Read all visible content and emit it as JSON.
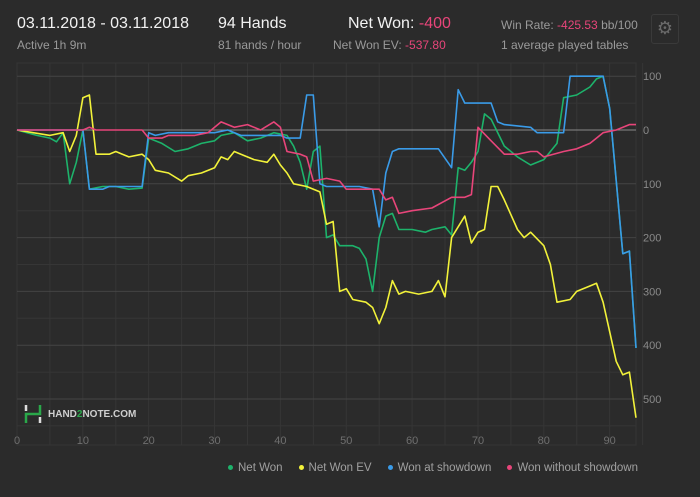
{
  "header": {
    "date_range": "03.11.2018 - 03.11.2018",
    "active": "Active 1h 9m",
    "hands": "94 Hands",
    "hands_per_hour": "81 hands / hour",
    "net_won_label": "Net Won:",
    "net_won_value": "-400",
    "net_won_ev_label": "Net Won  EV:",
    "net_won_ev_value": "-537.80",
    "win_rate_label": "Win Rate:",
    "win_rate_value": "-425.53",
    "win_rate_unit": "bb/100",
    "tables": "1 average played tables",
    "settings_icon": "gear-icon"
  },
  "logo": {
    "text_a": "HAND",
    "text_b": "2",
    "text_c": "NOTE.COM"
  },
  "chart_data": {
    "type": "line",
    "xlim": [
      0,
      94
    ],
    "ylim": [
      -540,
      100
    ],
    "x_ticks": [
      0,
      10,
      20,
      30,
      40,
      50,
      60,
      70,
      80,
      90
    ],
    "y_ticks": [
      100,
      0,
      -100,
      -200,
      -300,
      -400,
      -500
    ],
    "y_tick_labels": [
      "100",
      "0",
      "100",
      "200",
      "300",
      "400",
      "500"
    ],
    "grid": true,
    "legend_position": "bottom-right",
    "series": [
      {
        "name": "Net Won",
        "color": "#1db36b",
        "points": [
          [
            0,
            0
          ],
          [
            3,
            -10
          ],
          [
            5,
            -15
          ],
          [
            6,
            -22
          ],
          [
            7,
            -5
          ],
          [
            8,
            -100
          ],
          [
            9,
            -60
          ],
          [
            10,
            0
          ],
          [
            11,
            -110
          ],
          [
            13,
            -105
          ],
          [
            15,
            -105
          ],
          [
            17,
            -110
          ],
          [
            19,
            -108
          ],
          [
            20,
            -15
          ],
          [
            22,
            -25
          ],
          [
            24,
            -40
          ],
          [
            26,
            -35
          ],
          [
            28,
            -25
          ],
          [
            30,
            -20
          ],
          [
            31,
            -10
          ],
          [
            33,
            -5
          ],
          [
            35,
            -20
          ],
          [
            37,
            -15
          ],
          [
            39,
            -5
          ],
          [
            41,
            -10
          ],
          [
            42,
            -30
          ],
          [
            43,
            -60
          ],
          [
            44,
            -110
          ],
          [
            45,
            -40
          ],
          [
            46,
            -30
          ],
          [
            47,
            -200
          ],
          [
            48,
            -195
          ],
          [
            49,
            -215
          ],
          [
            51,
            -215
          ],
          [
            52,
            -220
          ],
          [
            53,
            -240
          ],
          [
            54,
            -300
          ],
          [
            55,
            -200
          ],
          [
            56,
            -160
          ],
          [
            57,
            -155
          ],
          [
            58,
            -185
          ],
          [
            60,
            -185
          ],
          [
            62,
            -190
          ],
          [
            63,
            -185
          ],
          [
            65,
            -180
          ],
          [
            66,
            -195
          ],
          [
            67,
            -70
          ],
          [
            68,
            -75
          ],
          [
            69,
            -60
          ],
          [
            70,
            -40
          ],
          [
            71,
            30
          ],
          [
            72,
            20
          ],
          [
            74,
            -30
          ],
          [
            76,
            -50
          ],
          [
            78,
            -65
          ],
          [
            80,
            -55
          ],
          [
            82,
            -25
          ],
          [
            83,
            60
          ],
          [
            85,
            65
          ],
          [
            87,
            80
          ],
          [
            88,
            95
          ],
          [
            89,
            100
          ],
          [
            90,
            40
          ],
          [
            92,
            -230
          ],
          [
            93,
            -225
          ],
          [
            94,
            -405
          ]
        ]
      },
      {
        "name": "Net Won  EV",
        "color": "#f2f23a",
        "points": [
          [
            0,
            0
          ],
          [
            5,
            -10
          ],
          [
            7,
            -5
          ],
          [
            8,
            -40
          ],
          [
            9,
            -10
          ],
          [
            10,
            60
          ],
          [
            11,
            65
          ],
          [
            12,
            -45
          ],
          [
            14,
            -45
          ],
          [
            15,
            -40
          ],
          [
            16,
            -45
          ],
          [
            17,
            -50
          ],
          [
            19,
            -45
          ],
          [
            20,
            -55
          ],
          [
            21,
            -75
          ],
          [
            23,
            -80
          ],
          [
            25,
            -95
          ],
          [
            26,
            -85
          ],
          [
            28,
            -80
          ],
          [
            30,
            -70
          ],
          [
            31,
            -50
          ],
          [
            32,
            -55
          ],
          [
            33,
            -40
          ],
          [
            34,
            -45
          ],
          [
            36,
            -55
          ],
          [
            38,
            -60
          ],
          [
            39,
            -45
          ],
          [
            40,
            -65
          ],
          [
            41,
            -80
          ],
          [
            42,
            -100
          ],
          [
            44,
            -105
          ],
          [
            46,
            -115
          ],
          [
            47,
            -175
          ],
          [
            48,
            -170
          ],
          [
            49,
            -300
          ],
          [
            50,
            -295
          ],
          [
            51,
            -315
          ],
          [
            53,
            -320
          ],
          [
            54,
            -330
          ],
          [
            55,
            -360
          ],
          [
            56,
            -330
          ],
          [
            57,
            -280
          ],
          [
            58,
            -305
          ],
          [
            59,
            -300
          ],
          [
            61,
            -305
          ],
          [
            63,
            -300
          ],
          [
            64,
            -280
          ],
          [
            65,
            -310
          ],
          [
            66,
            -200
          ],
          [
            68,
            -160
          ],
          [
            69,
            -210
          ],
          [
            70,
            -190
          ],
          [
            71,
            -185
          ],
          [
            72,
            -105
          ],
          [
            73,
            -105
          ],
          [
            74,
            -130
          ],
          [
            76,
            -185
          ],
          [
            77,
            -200
          ],
          [
            78,
            -190
          ],
          [
            80,
            -215
          ],
          [
            81,
            -250
          ],
          [
            82,
            -320
          ],
          [
            84,
            -315
          ],
          [
            85,
            -300
          ],
          [
            87,
            -290
          ],
          [
            88,
            -285
          ],
          [
            89,
            -320
          ],
          [
            90,
            -375
          ],
          [
            91,
            -430
          ],
          [
            92,
            -455
          ],
          [
            93,
            -450
          ],
          [
            94,
            -535
          ]
        ]
      },
      {
        "name": "Won at showdown",
        "color": "#3a9be8",
        "points": [
          [
            0,
            0
          ],
          [
            10,
            0
          ],
          [
            11,
            -110
          ],
          [
            13,
            -110
          ],
          [
            14,
            -105
          ],
          [
            19,
            -105
          ],
          [
            20,
            -5
          ],
          [
            21,
            -10
          ],
          [
            23,
            -5
          ],
          [
            30,
            -5
          ],
          [
            32,
            0
          ],
          [
            34,
            -10
          ],
          [
            40,
            -10
          ],
          [
            41,
            -15
          ],
          [
            43,
            -15
          ],
          [
            44,
            65
          ],
          [
            45,
            65
          ],
          [
            46,
            -100
          ],
          [
            47,
            -105
          ],
          [
            48,
            -105
          ],
          [
            52,
            -105
          ],
          [
            54,
            -110
          ],
          [
            55,
            -180
          ],
          [
            56,
            -80
          ],
          [
            57,
            -40
          ],
          [
            58,
            -35
          ],
          [
            64,
            -35
          ],
          [
            66,
            -70
          ],
          [
            67,
            75
          ],
          [
            68,
            50
          ],
          [
            72,
            50
          ],
          [
            73,
            15
          ],
          [
            74,
            10
          ],
          [
            78,
            5
          ],
          [
            79,
            -5
          ],
          [
            83,
            -5
          ],
          [
            84,
            100
          ],
          [
            89,
            100
          ],
          [
            90,
            40
          ],
          [
            92,
            -230
          ],
          [
            93,
            -225
          ],
          [
            94,
            -405
          ]
        ]
      },
      {
        "name": "Won without showdown",
        "color": "#e8457a",
        "points": [
          [
            0,
            0
          ],
          [
            10,
            0
          ],
          [
            11,
            5
          ],
          [
            12,
            0
          ],
          [
            19,
            0
          ],
          [
            20,
            -15
          ],
          [
            22,
            -15
          ],
          [
            23,
            -10
          ],
          [
            27,
            -10
          ],
          [
            29,
            -5
          ],
          [
            31,
            15
          ],
          [
            33,
            5
          ],
          [
            35,
            10
          ],
          [
            37,
            0
          ],
          [
            39,
            15
          ],
          [
            40,
            5
          ],
          [
            41,
            -40
          ],
          [
            43,
            -45
          ],
          [
            44,
            -50
          ],
          [
            45,
            -95
          ],
          [
            47,
            -90
          ],
          [
            49,
            -95
          ],
          [
            50,
            -110
          ],
          [
            52,
            -110
          ],
          [
            55,
            -110
          ],
          [
            56,
            -130
          ],
          [
            57,
            -125
          ],
          [
            58,
            -155
          ],
          [
            60,
            -150
          ],
          [
            63,
            -145
          ],
          [
            66,
            -125
          ],
          [
            68,
            -125
          ],
          [
            69,
            -120
          ],
          [
            70,
            5
          ],
          [
            72,
            -20
          ],
          [
            74,
            -45
          ],
          [
            76,
            -45
          ],
          [
            78,
            -40
          ],
          [
            79,
            -40
          ],
          [
            80,
            -50
          ],
          [
            83,
            -40
          ],
          [
            85,
            -35
          ],
          [
            87,
            -25
          ],
          [
            88,
            -15
          ],
          [
            89,
            -5
          ],
          [
            91,
            0
          ],
          [
            93,
            10
          ],
          [
            94,
            10
          ]
        ]
      }
    ]
  }
}
